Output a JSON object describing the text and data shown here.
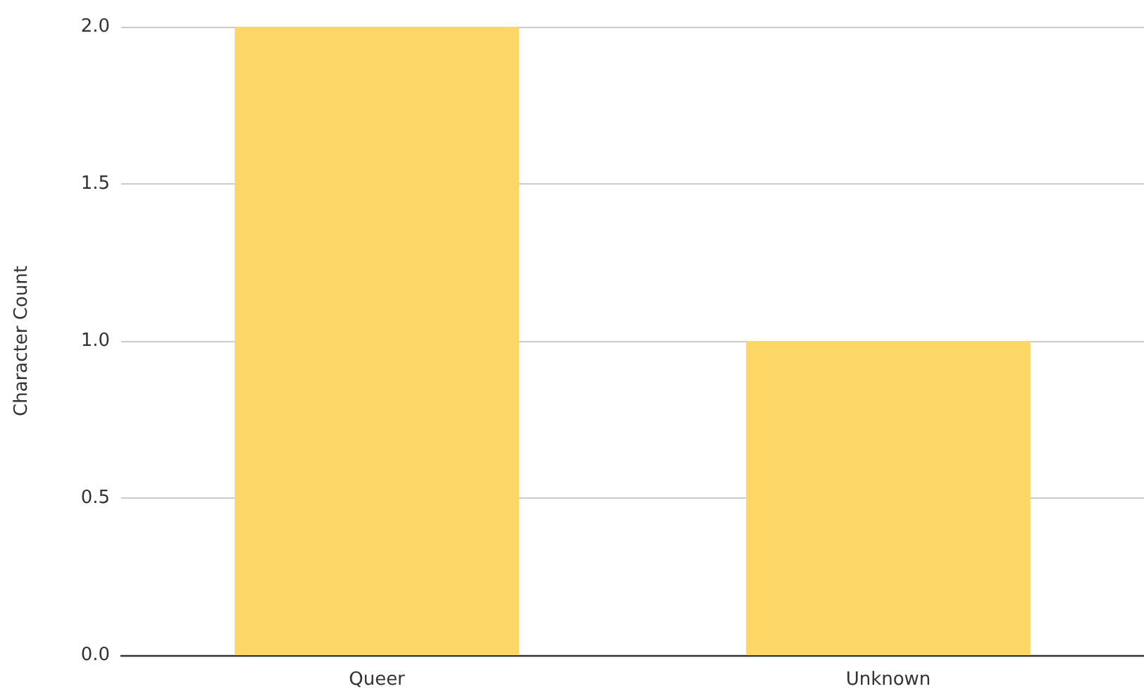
{
  "chart_data": {
    "type": "bar",
    "ylabel": "Character Count",
    "categories": [
      "Queer",
      "Unknown"
    ],
    "values": [
      2,
      1
    ],
    "color": "#fcd765",
    "ylim": [
      0,
      2
    ],
    "yticks": [
      {
        "value": 0,
        "label": "0.0"
      },
      {
        "value": 0.5,
        "label": "0.5"
      },
      {
        "value": 1,
        "label": "1.0"
      },
      {
        "value": 1.5,
        "label": "1.5"
      },
      {
        "value": 2,
        "label": "2.0"
      }
    ],
    "grid": "y"
  }
}
